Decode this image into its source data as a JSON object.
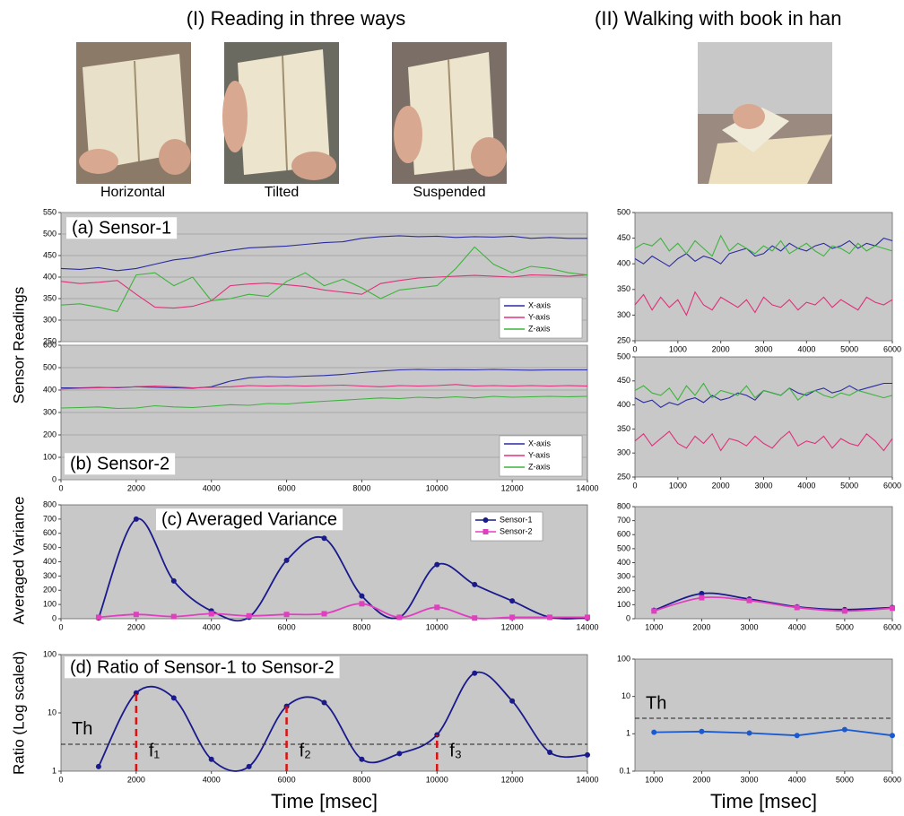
{
  "header": {
    "left": "(I) Reading in three ways",
    "right": "(II) Walking with book in han"
  },
  "photos": [
    "Horizontal",
    "Tilted",
    "Suspended"
  ],
  "chart_data": [
    {
      "type": "line",
      "title": "(a) Sensor-1",
      "y_label": "Sensor Readings",
      "grid": true,
      "legend": "lower right",
      "xlim": [
        0,
        14000
      ],
      "ylim": [
        250,
        550
      ],
      "yticks": [
        250,
        300,
        350,
        400,
        450,
        500,
        550
      ],
      "x": [
        0,
        500,
        1000,
        1500,
        2000,
        2500,
        3000,
        3500,
        4000,
        4500,
        5000,
        5500,
        6000,
        6500,
        7000,
        7500,
        8000,
        8500,
        9000,
        9500,
        10000,
        10500,
        11000,
        11500,
        12000,
        12500,
        13000,
        13500,
        14000
      ],
      "series": [
        {
          "name": "X-axis",
          "color": "#2a2aa0",
          "values": [
            420,
            418,
            422,
            415,
            420,
            430,
            440,
            445,
            455,
            462,
            468,
            470,
            472,
            476,
            480,
            482,
            490,
            494,
            496,
            494,
            495,
            492,
            494,
            493,
            495,
            490,
            492,
            490,
            490
          ]
        },
        {
          "name": "Y-axis",
          "color": "#e0307a",
          "values": [
            390,
            385,
            388,
            392,
            360,
            330,
            328,
            332,
            345,
            380,
            384,
            386,
            382,
            378,
            370,
            365,
            360,
            385,
            392,
            398,
            400,
            402,
            404,
            402,
            400,
            405,
            404,
            402,
            405
          ]
        },
        {
          "name": "Z-axis",
          "color": "#3cb43c",
          "values": [
            335,
            338,
            330,
            320,
            405,
            410,
            380,
            400,
            345,
            350,
            360,
            355,
            390,
            410,
            380,
            395,
            375,
            350,
            370,
            375,
            380,
            420,
            470,
            430,
            410,
            425,
            420,
            410,
            405
          ]
        }
      ]
    },
    {
      "type": "line",
      "title": "(b) Sensor-2",
      "grid": true,
      "legend": "lower right",
      "xlim": [
        0,
        14000
      ],
      "xticks": [
        0,
        2000,
        4000,
        6000,
        8000,
        10000,
        12000,
        14000
      ],
      "ylim": [
        0,
        600
      ],
      "yticks": [
        0,
        100,
        200,
        300,
        400,
        500,
        600
      ],
      "x": [
        0,
        500,
        1000,
        1500,
        2000,
        2500,
        3000,
        3500,
        4000,
        4500,
        5000,
        5500,
        6000,
        6500,
        7000,
        7500,
        8000,
        8500,
        9000,
        9500,
        10000,
        10500,
        11000,
        11500,
        12000,
        12500,
        13000,
        13500,
        14000
      ],
      "series": [
        {
          "name": "X-axis",
          "color": "#2a2aa0",
          "values": [
            410,
            410,
            412,
            410,
            415,
            412,
            410,
            408,
            415,
            440,
            455,
            460,
            458,
            462,
            465,
            470,
            478,
            485,
            490,
            492,
            490,
            491,
            490,
            492,
            490,
            489,
            490,
            490,
            490
          ]
        },
        {
          "name": "Y-axis",
          "color": "#e0307a",
          "values": [
            405,
            408,
            410,
            412,
            415,
            418,
            415,
            410,
            412,
            415,
            420,
            418,
            420,
            418,
            420,
            422,
            418,
            415,
            420,
            418,
            420,
            425,
            418,
            420,
            418,
            420,
            418,
            420,
            418
          ]
        },
        {
          "name": "Z-axis",
          "color": "#3cb43c",
          "values": [
            320,
            322,
            325,
            318,
            320,
            330,
            325,
            322,
            328,
            335,
            332,
            340,
            338,
            345,
            350,
            355,
            360,
            365,
            362,
            368,
            365,
            370,
            365,
            372,
            368,
            370,
            372,
            370,
            372
          ]
        }
      ]
    },
    {
      "type": "line",
      "title": "(c) Averaged Variance",
      "y_label": "Averaged Variance",
      "smooth": true,
      "legend": "upper right",
      "xlim": [
        0,
        14000
      ],
      "xticks": [
        0,
        2000,
        4000,
        6000,
        8000,
        10000,
        12000,
        14000
      ],
      "ylim": [
        0,
        800
      ],
      "yticks": [
        0,
        100,
        200,
        300,
        400,
        500,
        600,
        700,
        800
      ],
      "x": [
        1000,
        2000,
        3000,
        4000,
        5000,
        6000,
        7000,
        8000,
        9000,
        10000,
        11000,
        12000,
        13000,
        14000
      ],
      "series": [
        {
          "name": "Sensor-1",
          "color": "#1a1a8c",
          "marker": "circle",
          "values": [
            5,
            700,
            265,
            55,
            10,
            410,
            565,
            160,
            10,
            380,
            240,
            125,
            10,
            5
          ]
        },
        {
          "name": "Sensor-2",
          "color": "#e040c0",
          "marker": "square",
          "values": [
            10,
            30,
            15,
            35,
            20,
            30,
            35,
            105,
            10,
            80,
            5,
            10,
            10,
            10
          ]
        }
      ]
    },
    {
      "type": "line",
      "title": "(d) Ratio of Sensor-1 to Sensor-2",
      "y_label": "Ratio (Log scaled)",
      "x_label": "Time [msec]",
      "smooth": true,
      "log_scale": true,
      "xlim": [
        0,
        14000
      ],
      "xticks": [
        0,
        2000,
        4000,
        6000,
        8000,
        10000,
        12000,
        14000
      ],
      "ylim": [
        1,
        100
      ],
      "yticks": [
        1,
        10,
        100
      ],
      "threshold": {
        "value": 2.9,
        "label": "Th"
      },
      "markers": [
        {
          "x": 2000,
          "label": "f₁"
        },
        {
          "x": 6000,
          "label": "f₂"
        },
        {
          "x": 10000,
          "label": "f₃"
        }
      ],
      "x": [
        1000,
        2000,
        3000,
        4000,
        5000,
        6000,
        7000,
        8000,
        9000,
        10000,
        11000,
        12000,
        13000,
        14000
      ],
      "series": [
        {
          "color": "#1a1a8c",
          "marker": "circle",
          "values": [
            1.2,
            22,
            18,
            1.6,
            1.2,
            13,
            15,
            1.6,
            2,
            4.2,
            48,
            16,
            2.1,
            1.9
          ]
        }
      ]
    },
    {
      "type": "line",
      "xlim": [
        0,
        6000
      ],
      "xticks": [
        0,
        1000,
        2000,
        3000,
        4000,
        5000,
        6000
      ],
      "ylim": [
        250,
        500
      ],
      "yticks": [
        250,
        300,
        350,
        400,
        450,
        500
      ],
      "x": [
        0,
        200,
        400,
        600,
        800,
        1000,
        1200,
        1400,
        1600,
        1800,
        2000,
        2200,
        2400,
        2600,
        2800,
        3000,
        3200,
        3400,
        3600,
        3800,
        4000,
        4200,
        4400,
        4600,
        4800,
        5000,
        5200,
        5400,
        5600,
        5800,
        6000
      ],
      "series": [
        {
          "color": "#2a2aa0",
          "values": [
            410,
            400,
            415,
            405,
            395,
            410,
            420,
            405,
            415,
            410,
            400,
            420,
            425,
            430,
            415,
            420,
            435,
            425,
            440,
            430,
            425,
            435,
            440,
            430,
            435,
            445,
            430,
            440,
            435,
            450,
            445
          ]
        },
        {
          "color": "#e0307a",
          "values": [
            320,
            340,
            310,
            335,
            315,
            330,
            300,
            345,
            320,
            310,
            335,
            325,
            315,
            330,
            305,
            335,
            320,
            315,
            330,
            310,
            325,
            320,
            335,
            315,
            330,
            320,
            310,
            335,
            325,
            320,
            330
          ]
        },
        {
          "color": "#3cb43c",
          "values": [
            430,
            440,
            435,
            450,
            425,
            440,
            420,
            445,
            430,
            415,
            455,
            425,
            440,
            430,
            420,
            435,
            425,
            445,
            420,
            430,
            440,
            425,
            415,
            435,
            430,
            420,
            440,
            425,
            435,
            430,
            425
          ]
        }
      ]
    },
    {
      "type": "line",
      "xlim": [
        0,
        6000
      ],
      "xticks": [
        0,
        1000,
        2000,
        3000,
        4000,
        5000,
        6000
      ],
      "ylim": [
        250,
        500
      ],
      "yticks": [
        250,
        300,
        350,
        400,
        450,
        500
      ],
      "x": [
        0,
        200,
        400,
        600,
        800,
        1000,
        1200,
        1400,
        1600,
        1800,
        2000,
        2200,
        2400,
        2600,
        2800,
        3000,
        3200,
        3400,
        3600,
        3800,
        4000,
        4200,
        4400,
        4600,
        4800,
        5000,
        5200,
        5400,
        5600,
        5800,
        6000
      ],
      "series": [
        {
          "color": "#2a2aa0",
          "values": [
            415,
            405,
            410,
            395,
            405,
            400,
            410,
            415,
            405,
            420,
            410,
            415,
            425,
            420,
            410,
            430,
            425,
            420,
            435,
            425,
            420,
            430,
            435,
            425,
            430,
            440,
            430,
            435,
            440,
            445,
            445
          ]
        },
        {
          "color": "#e0307a",
          "values": [
            325,
            340,
            315,
            330,
            345,
            320,
            310,
            335,
            320,
            340,
            305,
            330,
            325,
            315,
            335,
            320,
            310,
            330,
            345,
            315,
            325,
            320,
            335,
            310,
            330,
            320,
            315,
            340,
            325,
            305,
            330
          ]
        },
        {
          "color": "#3cb43c",
          "values": [
            430,
            440,
            425,
            420,
            435,
            410,
            440,
            420,
            445,
            415,
            430,
            425,
            420,
            440,
            415,
            430,
            425,
            420,
            435,
            410,
            425,
            430,
            420,
            415,
            425,
            420,
            430,
            425,
            420,
            415,
            420
          ]
        }
      ]
    },
    {
      "type": "line",
      "smooth": true,
      "xlim": [
        600,
        6000
      ],
      "xticks": [
        1000,
        2000,
        3000,
        4000,
        5000,
        6000
      ],
      "ylim": [
        0,
        800
      ],
      "yticks": [
        0,
        100,
        200,
        300,
        400,
        500,
        600,
        700,
        800
      ],
      "x": [
        1000,
        2000,
        3000,
        4000,
        5000,
        6000
      ],
      "series": [
        {
          "color": "#1a1a8c",
          "marker": "circle",
          "values": [
            60,
            180,
            140,
            85,
            65,
            80
          ]
        },
        {
          "color": "#e040c0",
          "marker": "square",
          "values": [
            55,
            150,
            130,
            80,
            55,
            75
          ]
        }
      ]
    },
    {
      "type": "line",
      "x_label": "Time [msec]",
      "log_scale": true,
      "xlim": [
        600,
        6000
      ],
      "xticks": [
        1000,
        2000,
        3000,
        4000,
        5000,
        6000
      ],
      "ylim": [
        0.1,
        100
      ],
      "yticks": [
        0.1,
        1,
        10,
        100
      ],
      "threshold": {
        "value": 2.6,
        "label": "Th"
      },
      "x": [
        1000,
        2000,
        3000,
        4000,
        5000,
        6000
      ],
      "series": [
        {
          "color": "#1a5ad0",
          "marker": "circle",
          "values": [
            1.1,
            1.15,
            1.05,
            0.9,
            1.3,
            0.9
          ]
        }
      ]
    }
  ]
}
